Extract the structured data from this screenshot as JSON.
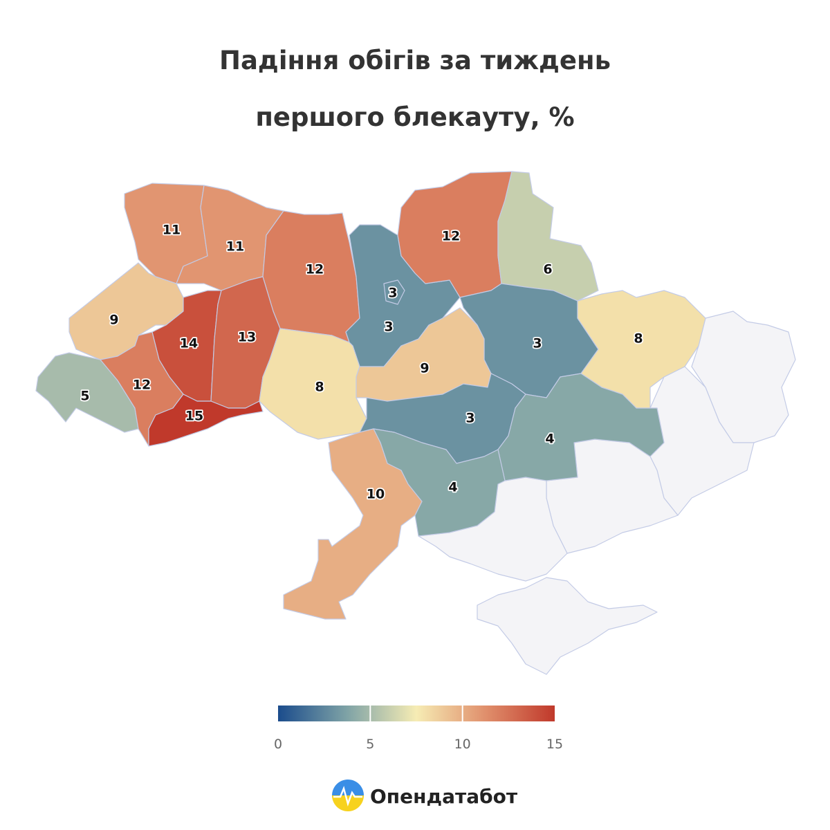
{
  "chart_data": {
    "type": "choropleth",
    "title": [
      "Падіння обігів за тиждень",
      "першого блекауту, %"
    ],
    "values": [
      11,
      11,
      12,
      3,
      3,
      12,
      6,
      9,
      14,
      13,
      8,
      3,
      9,
      3,
      8,
      5,
      12,
      15,
      4,
      4,
      10
    ],
    "colorbar": {
      "range": [
        0,
        15
      ],
      "ticks": [
        0,
        5,
        10,
        15
      ],
      "colors": [
        "#1b4c8c",
        "#7fa3a6",
        "#f6ecb4",
        "#e08f6c",
        "#c0392b"
      ]
    },
    "no_data_color": "#f4f4f7"
  },
  "logo": {
    "text": "Опендатабот"
  }
}
